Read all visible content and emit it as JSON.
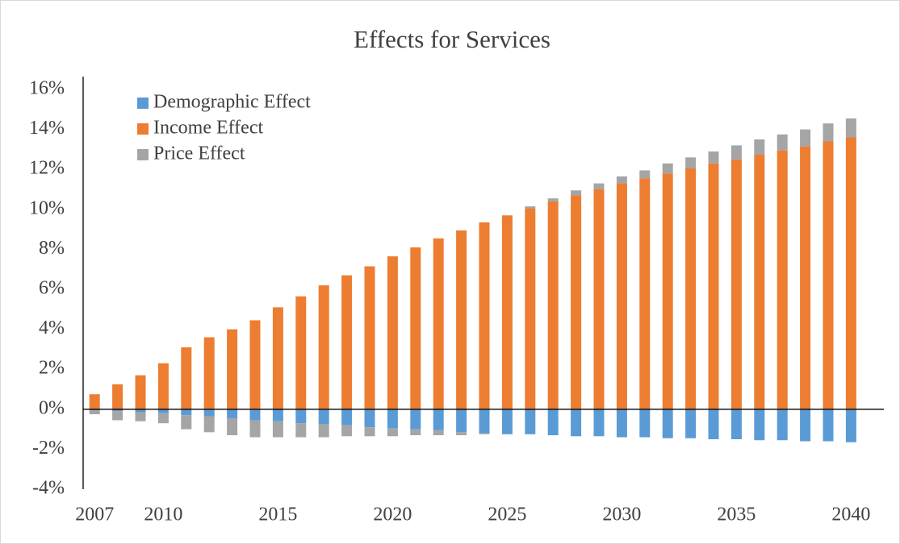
{
  "chart_data": {
    "type": "stacked_bar",
    "title": "Effects for Services",
    "categories": [
      "2007",
      null,
      null,
      "2010",
      null,
      null,
      null,
      null,
      "2015",
      null,
      null,
      null,
      null,
      "2020",
      null,
      null,
      null,
      null,
      "2025",
      null,
      null,
      null,
      null,
      "2030",
      null,
      null,
      null,
      null,
      "2035",
      null,
      null,
      null,
      null,
      "2040"
    ],
    "series": [
      {
        "name": "Demographic Effect",
        "color": "#5b9bd5",
        "values": [
          -0.05,
          -0.1,
          -0.15,
          -0.2,
          -0.3,
          -0.35,
          -0.45,
          -0.55,
          -0.6,
          -0.7,
          -0.75,
          -0.8,
          -0.9,
          -0.95,
          -1.0,
          -1.05,
          -1.15,
          -1.2,
          -1.25,
          -1.25,
          -1.3,
          -1.35,
          -1.35,
          -1.4,
          -1.4,
          -1.45,
          -1.45,
          -1.5,
          -1.5,
          -1.55,
          -1.55,
          -1.6,
          -1.6,
          -1.65
        ]
      },
      {
        "name": "Income Effect",
        "color": "#ed7d31",
        "values": [
          0.75,
          1.25,
          1.7,
          2.3,
          3.1,
          3.6,
          4.0,
          4.45,
          5.1,
          5.65,
          6.2,
          6.7,
          7.15,
          7.65,
          8.1,
          8.55,
          8.95,
          9.35,
          9.7,
          10.05,
          10.4,
          10.7,
          11.0,
          11.3,
          11.55,
          11.8,
          12.05,
          12.3,
          12.5,
          12.75,
          12.95,
          13.15,
          13.4,
          13.6
        ]
      },
      {
        "name": "Price Effect",
        "color": "#a5a5a5",
        "values": [
          -0.2,
          -0.45,
          -0.45,
          -0.5,
          -0.7,
          -0.8,
          -0.85,
          -0.85,
          -0.8,
          -0.7,
          -0.65,
          -0.55,
          -0.45,
          -0.4,
          -0.3,
          -0.25,
          -0.15,
          -0.05,
          0,
          0.1,
          0.15,
          0.25,
          0.3,
          0.35,
          0.4,
          0.5,
          0.55,
          0.6,
          0.7,
          0.75,
          0.8,
          0.85,
          0.9,
          0.95
        ]
      }
    ],
    "ylim": [
      -4,
      16
    ],
    "yticks": [
      {
        "value": -4,
        "label": "-4%"
      },
      {
        "value": -2,
        "label": "-2%"
      },
      {
        "value": 0,
        "label": "0%"
      },
      {
        "value": 2,
        "label": "2%"
      },
      {
        "value": 4,
        "label": "4%"
      },
      {
        "value": 6,
        "label": "6%"
      },
      {
        "value": 8,
        "label": "8%"
      },
      {
        "value": 10,
        "label": "10%"
      },
      {
        "value": 12,
        "label": "12%"
      },
      {
        "value": 14,
        "label": "14%"
      },
      {
        "value": 16,
        "label": "16%"
      }
    ],
    "grid": false,
    "legend": "upper left"
  }
}
